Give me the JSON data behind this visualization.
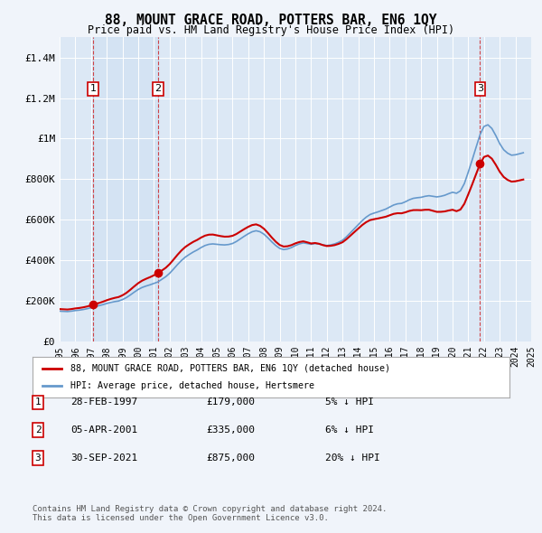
{
  "title": "88, MOUNT GRACE ROAD, POTTERS BAR, EN6 1QY",
  "subtitle": "Price paid vs. HM Land Registry's House Price Index (HPI)",
  "background_color": "#f0f4fa",
  "plot_bg_color": "#dce8f5",
  "ylim": [
    0,
    1500000
  ],
  "yticks": [
    0,
    200000,
    400000,
    600000,
    800000,
    1000000,
    1200000,
    1400000
  ],
  "ytick_labels": [
    "£0",
    "£200K",
    "£400K",
    "£600K",
    "£800K",
    "£1M",
    "£1.2M",
    "£1.4M"
  ],
  "x_start": 1995,
  "x_end": 2025,
  "xticks": [
    1995,
    1996,
    1997,
    1998,
    1999,
    2000,
    2001,
    2002,
    2003,
    2004,
    2005,
    2006,
    2007,
    2008,
    2009,
    2010,
    2011,
    2012,
    2013,
    2014,
    2015,
    2016,
    2017,
    2018,
    2019,
    2020,
    2021,
    2022,
    2023,
    2024,
    2025
  ],
  "hpi_color": "#6699cc",
  "price_color": "#cc0000",
  "vline_color": "#cc0000",
  "vline_style": "--",
  "transactions": [
    {
      "date": 1997.12,
      "price": 179000,
      "label": "1"
    },
    {
      "date": 2001.26,
      "price": 335000,
      "label": "2"
    },
    {
      "date": 2021.75,
      "price": 875000,
      "label": "3"
    }
  ],
  "legend_price_label": "88, MOUNT GRACE ROAD, POTTERS BAR, EN6 1QY (detached house)",
  "legend_hpi_label": "HPI: Average price, detached house, Hertsmere",
  "table_rows": [
    [
      "1",
      "28-FEB-1997",
      "£179,000",
      "5% ↓ HPI"
    ],
    [
      "2",
      "05-APR-2001",
      "£335,000",
      "6% ↓ HPI"
    ],
    [
      "3",
      "30-SEP-2021",
      "£875,000",
      "20% ↓ HPI"
    ]
  ],
  "footer_text": "Contains HM Land Registry data © Crown copyright and database right 2024.\nThis data is licensed under the Open Government Licence v3.0.",
  "hpi_data": {
    "years": [
      1995.0,
      1995.25,
      1995.5,
      1995.75,
      1996.0,
      1996.25,
      1996.5,
      1996.75,
      1997.0,
      1997.25,
      1997.5,
      1997.75,
      1998.0,
      1998.25,
      1998.5,
      1998.75,
      1999.0,
      1999.25,
      1999.5,
      1999.75,
      2000.0,
      2000.25,
      2000.5,
      2000.75,
      2001.0,
      2001.25,
      2001.5,
      2001.75,
      2002.0,
      2002.25,
      2002.5,
      2002.75,
      2003.0,
      2003.25,
      2003.5,
      2003.75,
      2004.0,
      2004.25,
      2004.5,
      2004.75,
      2005.0,
      2005.25,
      2005.5,
      2005.75,
      2006.0,
      2006.25,
      2006.5,
      2006.75,
      2007.0,
      2007.25,
      2007.5,
      2007.75,
      2008.0,
      2008.25,
      2008.5,
      2008.75,
      2009.0,
      2009.25,
      2009.5,
      2009.75,
      2010.0,
      2010.25,
      2010.5,
      2010.75,
      2011.0,
      2011.25,
      2011.5,
      2011.75,
      2012.0,
      2012.25,
      2012.5,
      2012.75,
      2013.0,
      2013.25,
      2013.5,
      2013.75,
      2014.0,
      2014.25,
      2014.5,
      2014.75,
      2015.0,
      2015.25,
      2015.5,
      2015.75,
      2016.0,
      2016.25,
      2016.5,
      2016.75,
      2017.0,
      2017.25,
      2017.5,
      2017.75,
      2018.0,
      2018.25,
      2018.5,
      2018.75,
      2019.0,
      2019.25,
      2019.5,
      2019.75,
      2020.0,
      2020.25,
      2020.5,
      2020.75,
      2021.0,
      2021.25,
      2021.5,
      2021.75,
      2022.0,
      2022.25,
      2022.5,
      2022.75,
      2023.0,
      2023.25,
      2023.5,
      2023.75,
      2024.0,
      2024.25,
      2024.5
    ],
    "values": [
      148000,
      147000,
      146000,
      148000,
      151000,
      153000,
      156000,
      160000,
      165000,
      170000,
      175000,
      180000,
      186000,
      191000,
      195000,
      198000,
      205000,
      215000,
      228000,
      242000,
      255000,
      265000,
      272000,
      278000,
      285000,
      292000,
      305000,
      318000,
      335000,
      356000,
      378000,
      398000,
      415000,
      428000,
      440000,
      450000,
      462000,
      472000,
      478000,
      480000,
      478000,
      476000,
      475000,
      477000,
      482000,
      492000,
      505000,
      518000,
      530000,
      540000,
      545000,
      540000,
      528000,
      510000,
      490000,
      472000,
      458000,
      452000,
      455000,
      462000,
      472000,
      480000,
      485000,
      482000,
      478000,
      482000,
      480000,
      475000,
      472000,
      475000,
      480000,
      488000,
      498000,
      515000,
      535000,
      555000,
      575000,
      595000,
      612000,
      625000,
      632000,
      638000,
      645000,
      652000,
      662000,
      672000,
      678000,
      680000,
      688000,
      698000,
      705000,
      708000,
      710000,
      715000,
      718000,
      715000,
      712000,
      715000,
      720000,
      728000,
      735000,
      730000,
      742000,
      778000,
      835000,
      895000,
      958000,
      1020000,
      1060000,
      1068000,
      1050000,
      1015000,
      975000,
      945000,
      928000,
      918000,
      920000,
      925000,
      930000
    ]
  }
}
